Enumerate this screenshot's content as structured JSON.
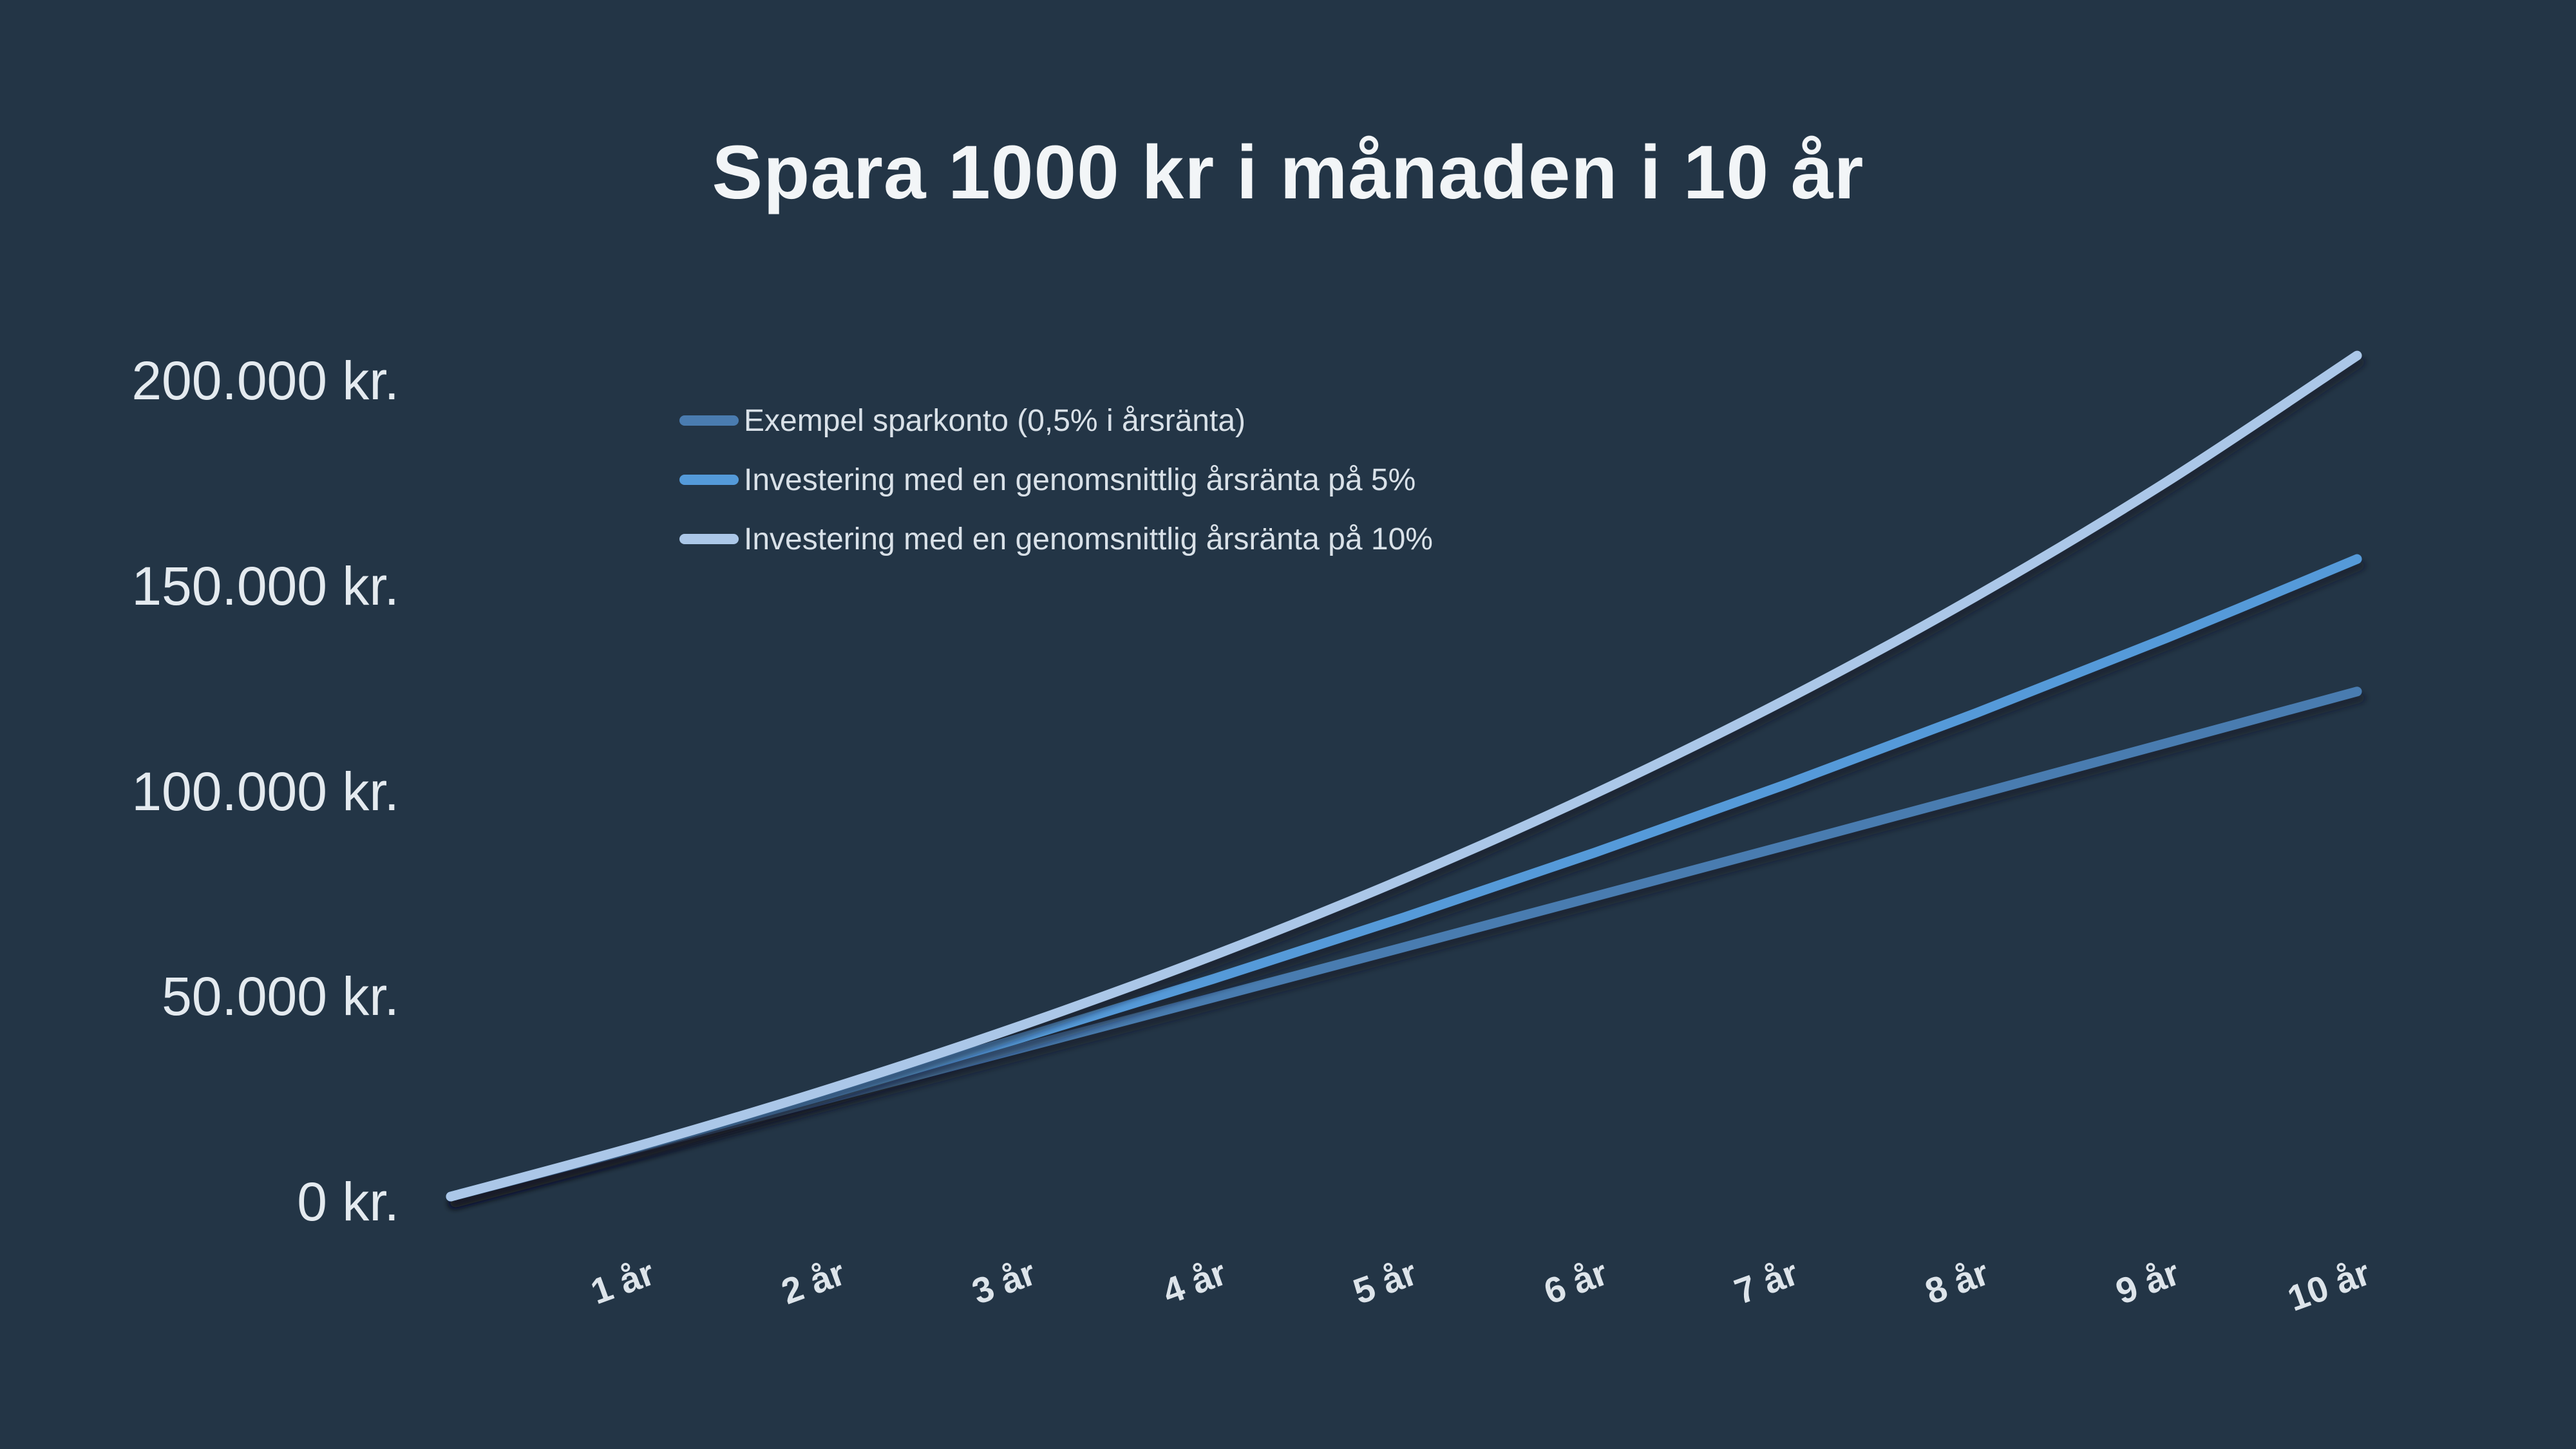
{
  "title": "Spara 1000 kr i månaden i 10 år",
  "colors": {
    "background": "#233546",
    "gridline": "#35495c",
    "title_text": "#f2f5f7",
    "axis_text": "#e4eaef",
    "legend_text": "#d9e1e8",
    "series_sparkonto": "#4a7cb0",
    "series_invest_5": "#549ad9",
    "series_invest_10": "#abc7e8"
  },
  "chart_data": {
    "type": "line",
    "title": "Spara 1000 kr i månaden i 10 år",
    "grid": "horizontal",
    "legend_position": "inside-top-left",
    "x_axis": {
      "unit": "år",
      "categories": [
        "1 år",
        "2 år",
        "3 år",
        "4 år",
        "5 år",
        "6 år",
        "7 år",
        "8 år",
        "9 år",
        "10 år"
      ],
      "range_years": [
        0,
        10
      ],
      "tick_label_rotation_deg": -20
    },
    "y_axis": {
      "unit": "kr",
      "ylim": [
        0,
        215000
      ],
      "ticks": [
        {
          "label": "0 kr.",
          "value": 0
        },
        {
          "label": "50.000 kr.",
          "value": 50000
        },
        {
          "label": "100.000 kr.",
          "value": 100000
        },
        {
          "label": "150.000 kr.",
          "value": 150000
        },
        {
          "label": "200.000 kr.",
          "value": 200000
        }
      ]
    },
    "series": [
      {
        "name": "Exempel sparkonto (0,5% i årsränta)",
        "color": "#4a7cb0",
        "years": [
          0,
          1,
          2,
          3,
          4,
          5,
          6,
          7,
          8,
          9,
          10
        ],
        "values": [
          0,
          12028,
          24116,
          36263,
          48473,
          60744,
          73076,
          85470,
          97926,
          110444,
          123026
        ]
      },
      {
        "name": "Investering med en genomsnittlig årsränta på 5%",
        "color": "#549ad9",
        "years": [
          0,
          1,
          2,
          3,
          4,
          5,
          6,
          7,
          8,
          9,
          10
        ],
        "values": [
          0,
          12279,
          25186,
          38753,
          53015,
          68006,
          83764,
          100327,
          117738,
          136039,
          155282
        ]
      },
      {
        "name": "Investering med en genomsnittlig årsränta på 10%",
        "color": "#abc7e8",
        "years": [
          0,
          1,
          2,
          3,
          4,
          5,
          6,
          7,
          8,
          9,
          10
        ],
        "values": [
          0,
          12566,
          26447,
          41782,
          58723,
          77437,
          98111,
          120950,
          146181,
          174053,
          204845
        ]
      }
    ]
  }
}
